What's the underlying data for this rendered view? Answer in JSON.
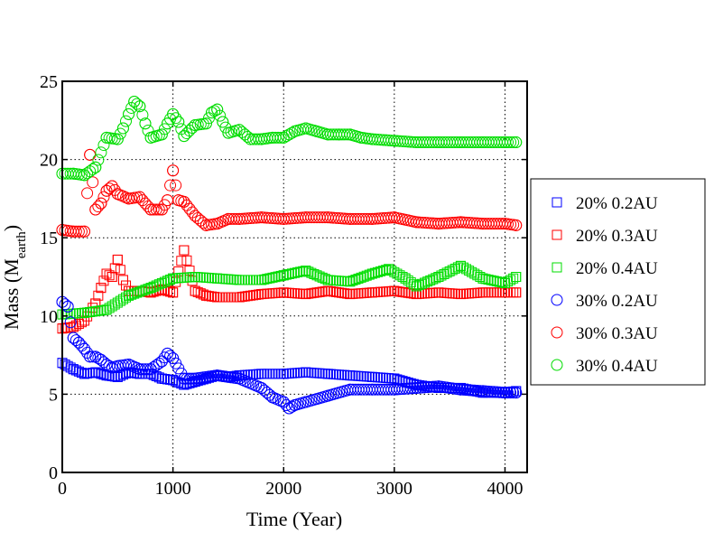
{
  "chart_data": {
    "type": "scatter",
    "xlabel": "Time  (Year)",
    "ylabel_main": "Mass  (M",
    "ylabel_sub": "earth",
    "ylabel_close": ")",
    "xlim": [
      0,
      4200
    ],
    "ylim": [
      0,
      25
    ],
    "xticks": [
      0,
      1000,
      2000,
      3000,
      4000
    ],
    "yticks": [
      0,
      5,
      10,
      15,
      20,
      25
    ],
    "grid": "dotted",
    "legend_position": "right",
    "series": [
      {
        "name": "20% 0.2AU",
        "marker": "square",
        "color": "#0000ff",
        "points": [
          [
            0,
            7.0
          ],
          [
            100,
            6.6
          ],
          [
            200,
            6.3
          ],
          [
            300,
            6.4
          ],
          [
            400,
            6.2
          ],
          [
            500,
            6.1
          ],
          [
            600,
            6.4
          ],
          [
            700,
            6.3
          ],
          [
            800,
            6.3
          ],
          [
            900,
            6.0
          ],
          [
            1000,
            5.9
          ],
          [
            1100,
            5.6
          ],
          [
            1200,
            5.8
          ],
          [
            1300,
            6.0
          ],
          [
            1400,
            6.2
          ],
          [
            1500,
            6.1
          ],
          [
            1600,
            6.2
          ],
          [
            1800,
            6.3
          ],
          [
            2000,
            6.3
          ],
          [
            2200,
            6.4
          ],
          [
            2400,
            6.3
          ],
          [
            2600,
            6.2
          ],
          [
            2800,
            6.1
          ],
          [
            3000,
            6.0
          ],
          [
            3200,
            5.6
          ],
          [
            3400,
            5.4
          ],
          [
            3600,
            5.4
          ],
          [
            3800,
            5.1
          ],
          [
            4000,
            5.1
          ],
          [
            4100,
            5.2
          ]
        ]
      },
      {
        "name": "20% 0.3AU",
        "marker": "square",
        "color": "#ff0000",
        "points": [
          [
            0,
            9.2
          ],
          [
            100,
            9.3
          ],
          [
            200,
            9.7
          ],
          [
            300,
            10.8
          ],
          [
            350,
            11.8
          ],
          [
            400,
            12.7
          ],
          [
            450,
            12.5
          ],
          [
            500,
            13.6
          ],
          [
            550,
            12.3
          ],
          [
            600,
            11.6
          ],
          [
            700,
            11.6
          ],
          [
            800,
            11.5
          ],
          [
            900,
            11.7
          ],
          [
            1000,
            11.5
          ],
          [
            1100,
            14.2
          ],
          [
            1200,
            11.6
          ],
          [
            1300,
            11.3
          ],
          [
            1400,
            11.2
          ],
          [
            1600,
            11.2
          ],
          [
            1800,
            11.4
          ],
          [
            2000,
            11.5
          ],
          [
            2200,
            11.4
          ],
          [
            2400,
            11.6
          ],
          [
            2600,
            11.4
          ],
          [
            2800,
            11.5
          ],
          [
            3000,
            11.6
          ],
          [
            3200,
            11.4
          ],
          [
            3400,
            11.5
          ],
          [
            3600,
            11.4
          ],
          [
            3800,
            11.5
          ],
          [
            4000,
            11.5
          ],
          [
            4100,
            11.5
          ]
        ]
      },
      {
        "name": "20% 0.4AU",
        "marker": "square",
        "color": "#00dd00",
        "points": [
          [
            0,
            10.1
          ],
          [
            200,
            10.2
          ],
          [
            400,
            10.4
          ],
          [
            600,
            11.3
          ],
          [
            800,
            11.8
          ],
          [
            1000,
            12.4
          ],
          [
            1200,
            12.5
          ],
          [
            1400,
            12.4
          ],
          [
            1600,
            12.3
          ],
          [
            1800,
            12.3
          ],
          [
            2000,
            12.6
          ],
          [
            2200,
            12.9
          ],
          [
            2400,
            12.3
          ],
          [
            2600,
            12.2
          ],
          [
            2800,
            12.7
          ],
          [
            2950,
            13.0
          ],
          [
            3100,
            12.4
          ],
          [
            3200,
            11.9
          ],
          [
            3400,
            12.5
          ],
          [
            3600,
            13.2
          ],
          [
            3800,
            12.4
          ],
          [
            4000,
            12.1
          ],
          [
            4100,
            12.5
          ]
        ]
      },
      {
        "name": "30% 0.2AU",
        "marker": "circle",
        "color": "#0000ff",
        "points": [
          [
            0,
            10.9
          ],
          [
            50,
            10.6
          ],
          [
            100,
            8.6
          ],
          [
            150,
            8.3
          ],
          [
            200,
            7.9
          ],
          [
            250,
            7.4
          ],
          [
            300,
            7.4
          ],
          [
            350,
            7.2
          ],
          [
            400,
            6.9
          ],
          [
            450,
            6.7
          ],
          [
            500,
            6.8
          ],
          [
            600,
            6.9
          ],
          [
            700,
            6.6
          ],
          [
            800,
            6.6
          ],
          [
            900,
            7.1
          ],
          [
            950,
            7.6
          ],
          [
            1000,
            7.3
          ],
          [
            1100,
            6.0
          ],
          [
            1200,
            6.0
          ],
          [
            1400,
            6.2
          ],
          [
            1600,
            6.0
          ],
          [
            1800,
            5.4
          ],
          [
            1900,
            4.8
          ],
          [
            2000,
            4.5
          ],
          [
            2050,
            4.1
          ],
          [
            2100,
            4.3
          ],
          [
            2200,
            4.5
          ],
          [
            2400,
            4.9
          ],
          [
            2600,
            5.3
          ],
          [
            2800,
            5.3
          ],
          [
            3000,
            5.3
          ],
          [
            3200,
            5.4
          ],
          [
            3400,
            5.5
          ],
          [
            3600,
            5.3
          ],
          [
            3800,
            5.2
          ],
          [
            4000,
            5.1
          ],
          [
            4100,
            5.1
          ]
        ]
      },
      {
        "name": "30% 0.3AU",
        "marker": "circle",
        "color": "#ff0000",
        "points": [
          [
            0,
            15.5
          ],
          [
            100,
            15.4
          ],
          [
            200,
            15.4
          ],
          [
            250,
            20.3
          ],
          [
            300,
            16.8
          ],
          [
            350,
            17.2
          ],
          [
            400,
            18.0
          ],
          [
            450,
            18.3
          ],
          [
            500,
            17.8
          ],
          [
            600,
            17.5
          ],
          [
            700,
            17.6
          ],
          [
            800,
            16.8
          ],
          [
            900,
            16.8
          ],
          [
            950,
            17.4
          ],
          [
            1000,
            19.3
          ],
          [
            1050,
            17.4
          ],
          [
            1100,
            17.3
          ],
          [
            1200,
            16.4
          ],
          [
            1300,
            15.8
          ],
          [
            1400,
            15.9
          ],
          [
            1500,
            16.2
          ],
          [
            1600,
            16.2
          ],
          [
            1800,
            16.3
          ],
          [
            2000,
            16.2
          ],
          [
            2200,
            16.3
          ],
          [
            2400,
            16.3
          ],
          [
            2600,
            16.2
          ],
          [
            2800,
            16.2
          ],
          [
            3000,
            16.3
          ],
          [
            3200,
            16.0
          ],
          [
            3400,
            15.9
          ],
          [
            3600,
            16.0
          ],
          [
            3800,
            15.9
          ],
          [
            4000,
            15.9
          ],
          [
            4100,
            15.8
          ]
        ]
      },
      {
        "name": "30% 0.4AU",
        "marker": "circle",
        "color": "#00dd00",
        "points": [
          [
            0,
            19.1
          ],
          [
            100,
            19.1
          ],
          [
            200,
            19.0
          ],
          [
            300,
            19.5
          ],
          [
            400,
            21.4
          ],
          [
            500,
            21.3
          ],
          [
            550,
            22.0
          ],
          [
            600,
            22.9
          ],
          [
            650,
            23.7
          ],
          [
            700,
            23.4
          ],
          [
            750,
            22.3
          ],
          [
            800,
            21.4
          ],
          [
            900,
            21.6
          ],
          [
            950,
            22.3
          ],
          [
            1000,
            22.9
          ],
          [
            1050,
            22.4
          ],
          [
            1100,
            21.5
          ],
          [
            1200,
            22.2
          ],
          [
            1300,
            22.3
          ],
          [
            1350,
            23.0
          ],
          [
            1400,
            23.2
          ],
          [
            1450,
            22.4
          ],
          [
            1500,
            21.7
          ],
          [
            1600,
            21.9
          ],
          [
            1700,
            21.3
          ],
          [
            1800,
            21.3
          ],
          [
            1900,
            21.4
          ],
          [
            2000,
            21.4
          ],
          [
            2100,
            21.8
          ],
          [
            2200,
            22.0
          ],
          [
            2300,
            21.8
          ],
          [
            2400,
            21.6
          ],
          [
            2500,
            21.6
          ],
          [
            2600,
            21.6
          ],
          [
            2700,
            21.4
          ],
          [
            2800,
            21.3
          ],
          [
            3000,
            21.2
          ],
          [
            3200,
            21.1
          ],
          [
            3400,
            21.1
          ],
          [
            3600,
            21.1
          ],
          [
            3800,
            21.1
          ],
          [
            4000,
            21.1
          ],
          [
            4100,
            21.1
          ]
        ]
      }
    ]
  }
}
